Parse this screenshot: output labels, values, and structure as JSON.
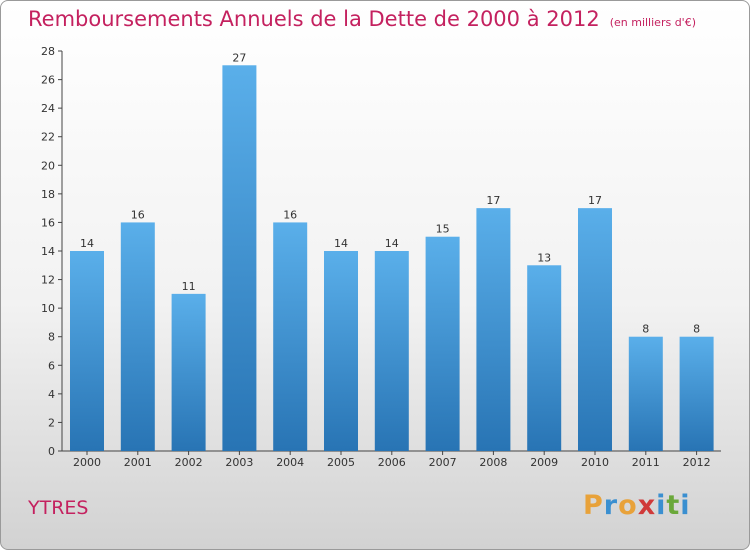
{
  "header": {
    "title": "Remboursements Annuels de la Dette de 2000 à 2012",
    "unit": "(en milliers d'€)"
  },
  "footer": {
    "commune": "YTRES",
    "logo_letters": [
      "P",
      "r",
      "o",
      "x",
      "i",
      "t",
      "i"
    ],
    "logo_colors": [
      "#e8a23a",
      "#3a8fd0",
      "#e8a23a",
      "#d03a3a",
      "#3a8fd0",
      "#6aa83a",
      "#3a8fd0"
    ]
  },
  "colors": {
    "bar_top": "#5aafea",
    "bar_bottom": "#2874b4",
    "title": "#c4215f"
  },
  "chart_data": {
    "type": "bar",
    "categories": [
      "2000",
      "2001",
      "2002",
      "2003",
      "2004",
      "2005",
      "2006",
      "2007",
      "2008",
      "2009",
      "2010",
      "2011",
      "2012"
    ],
    "values": [
      14,
      16,
      11,
      27,
      16,
      14,
      14,
      15,
      17,
      13,
      17,
      8,
      8
    ],
    "title": "Remboursements Annuels de la Dette de 2000 à 2012",
    "ylim": [
      0,
      28
    ],
    "yticks": [
      0,
      2,
      4,
      6,
      8,
      10,
      12,
      14,
      16,
      18,
      20,
      22,
      24,
      26,
      28
    ],
    "grid": false,
    "data_labels": true
  }
}
